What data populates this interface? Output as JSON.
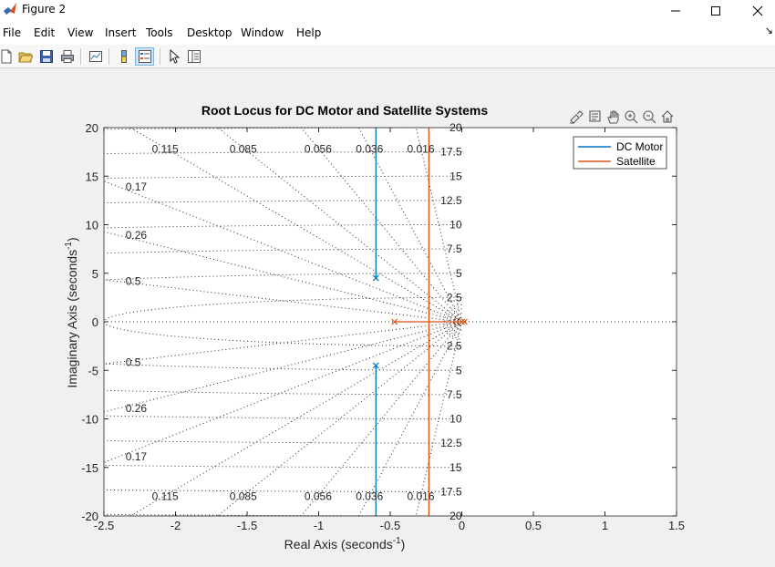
{
  "window": {
    "title": "Figure 2",
    "buttons": [
      "minimize-icon",
      "maximize-icon",
      "close-icon"
    ]
  },
  "menubar": {
    "items": [
      "File",
      "Edit",
      "View",
      "Insert",
      "Tools",
      "Desktop",
      "Window",
      "Help"
    ],
    "overflow_glyph": "↘"
  },
  "toolbar": {
    "buttons": [
      "new-figure-icon",
      "open-file-icon",
      "save-icon",
      "print-icon",
      "link-plot-icon",
      "colorbar-icon",
      "legend-icon",
      "edit-plot-icon",
      "property-inspector-icon"
    ],
    "active": [
      "legend-icon"
    ]
  },
  "axes_toolbar": {
    "buttons": [
      "brush-icon",
      "data-tips-icon",
      "pan-icon",
      "zoom-in-icon",
      "zoom-out-icon",
      "home-icon"
    ]
  },
  "chart_data": {
    "type": "line",
    "title": "Root Locus for DC Motor and Satellite Systems",
    "xlabel": "Real Axis (seconds",
    "ylabel": "Imaginary Axis (seconds",
    "axis_unit_superscript": "-1",
    "xlabel_close": ")",
    "ylabel_close": ")",
    "xlim": [
      -2.5,
      1.5
    ],
    "ylim": [
      -20,
      20
    ],
    "xticks": [
      -2.5,
      -2,
      -1.5,
      -1,
      -0.5,
      0,
      0.5,
      1,
      1.5
    ],
    "xtick_labels": [
      "-2.5",
      "-2",
      "-1.5",
      "-1",
      "-0.5",
      "0",
      "0.5",
      "1",
      "1.5"
    ],
    "yticks": [
      -20,
      -15,
      -10,
      -5,
      0,
      5,
      10,
      15,
      20
    ],
    "ytick_labels": [
      "-20",
      "-15",
      "-10",
      "-5",
      "0",
      "5",
      "10",
      "15",
      "20"
    ],
    "grid": "sgrid",
    "legend": {
      "placement": "top-right",
      "entries": [
        "DC Motor",
        "Satellite"
      ]
    },
    "series": [
      {
        "name": "DC Motor",
        "color": "#0072BD",
        "poles": [
          [
            -0.6,
            4.5
          ],
          [
            -0.6,
            -4.5
          ]
        ],
        "branches": [
          [
            [
              -0.6,
              4.5
            ],
            [
              -0.6,
              20
            ]
          ],
          [
            [
              -0.6,
              -4.5
            ],
            [
              -0.6,
              -20
            ]
          ]
        ]
      },
      {
        "name": "Satellite",
        "color": "#D95319",
        "poles": [
          [
            -0.47,
            0
          ],
          [
            0,
            0
          ],
          [
            0,
            0
          ]
        ],
        "branches": [
          [
            [
              -0.47,
              0
            ],
            [
              -0.23,
              0
            ]
          ],
          [
            [
              0,
              0
            ],
            [
              -0.23,
              0
            ]
          ],
          [
            [
              -0.23,
              0
            ],
            [
              -0.23,
              20
            ]
          ],
          [
            [
              -0.23,
              0
            ],
            [
              -0.23,
              -20
            ]
          ]
        ]
      }
    ],
    "damping_lines": [
      {
        "zeta": 0.115,
        "label": "0.115"
      },
      {
        "zeta": 0.085,
        "label": "0.085"
      },
      {
        "zeta": 0.056,
        "label": "0.056"
      },
      {
        "zeta": 0.036,
        "label": "0.036"
      },
      {
        "zeta": 0.016,
        "label": "0.016"
      },
      {
        "zeta": 0.17,
        "label": "0.17"
      },
      {
        "zeta": 0.26,
        "label": "0.26"
      },
      {
        "zeta": 0.5,
        "label": "0.5"
      }
    ],
    "frequency_labels": {
      "values": [
        2.5,
        5,
        7.5,
        10,
        12.5,
        15,
        17.5,
        20
      ],
      "labels": [
        "2.5",
        "5",
        "7.5",
        "10",
        "12.5",
        "15",
        "17.5",
        "20"
      ]
    },
    "colors": {
      "axes_bg": "#ffffff",
      "figure_bg": "#f0f0f0",
      "grid": "#262626"
    }
  }
}
